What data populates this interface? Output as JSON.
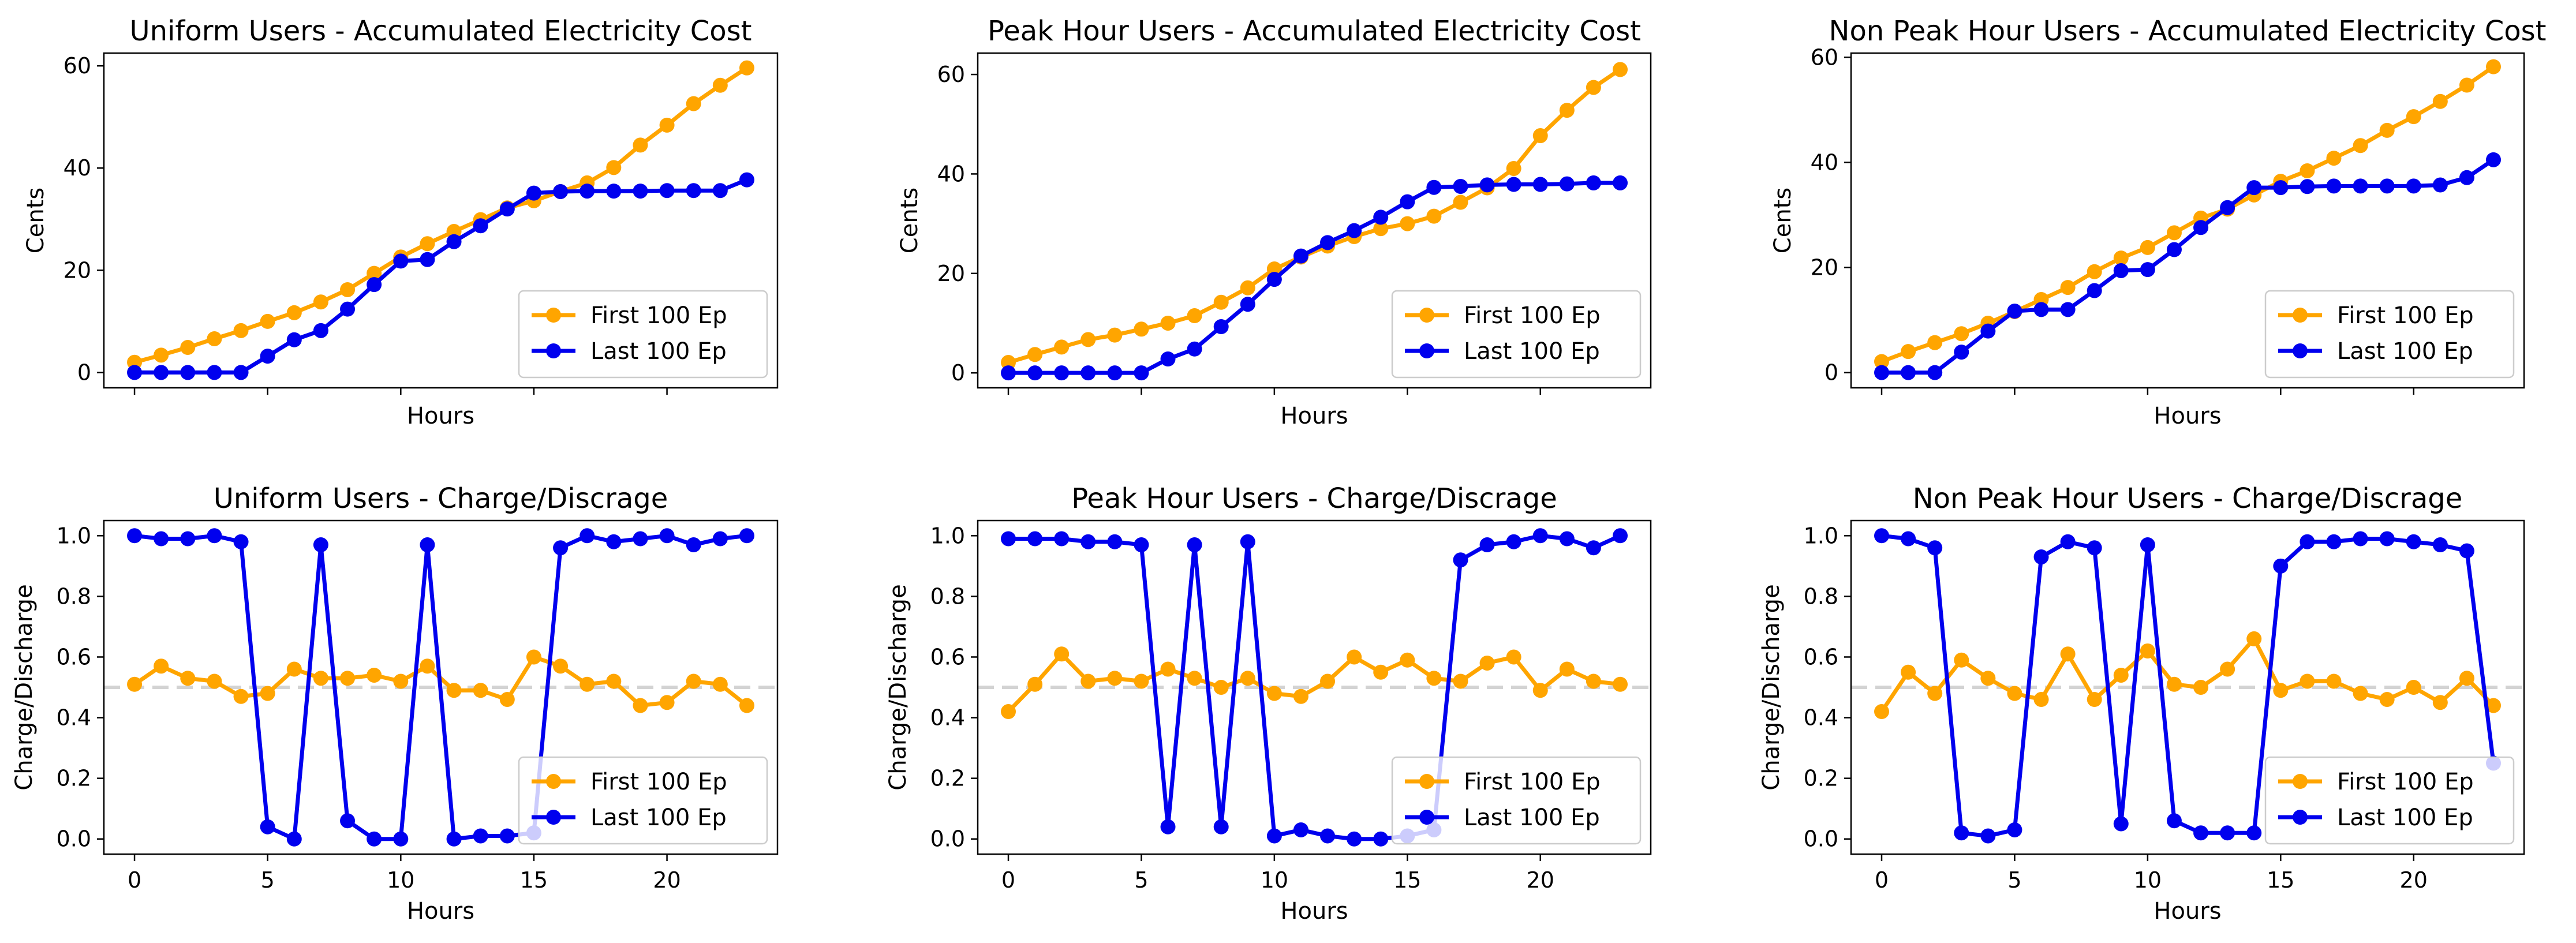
{
  "colors": {
    "first": "#ffa500",
    "last": "#0000ee",
    "reference": "#d3d3d3",
    "axes": "#000000",
    "background": "#ffffff"
  },
  "legend": {
    "first": "First 100 Ep",
    "last": "Last 100 Ep",
    "placement": "lower right"
  },
  "hours": [
    0,
    1,
    2,
    3,
    4,
    5,
    6,
    7,
    8,
    9,
    10,
    11,
    12,
    13,
    14,
    15,
    16,
    17,
    18,
    19,
    20,
    21,
    22,
    23
  ],
  "chart_data": [
    {
      "type": "line",
      "title": "Uniform Users - Accumulated Electricity Cost",
      "xlabel": "Hours",
      "ylabel": "Cents",
      "xlim": [
        -1.15,
        24.15
      ],
      "ylim": [
        -3,
        62.5
      ],
      "xticks": [
        0,
        5,
        10,
        15,
        20
      ],
      "show_xtick_labels": false,
      "yticks": [
        0,
        20,
        40,
        60
      ],
      "ytick_labels": [
        "0",
        "20",
        "40",
        "60"
      ],
      "series": [
        {
          "name": "First 100 Ep",
          "values": [
            2.0,
            3.4,
            4.9,
            6.6,
            8.2,
            10.0,
            11.7,
            13.8,
            16.2,
            19.4,
            22.6,
            25.2,
            27.6,
            29.9,
            32.2,
            33.6,
            35.4,
            37.1,
            40.1,
            44.5,
            48.4,
            52.6,
            56.2,
            59.6
          ]
        },
        {
          "name": "Last 100 Ep",
          "values": [
            0.0,
            0.0,
            0.0,
            0.0,
            0.0,
            3.2,
            6.4,
            8.2,
            12.4,
            17.2,
            21.8,
            22.1,
            25.6,
            28.7,
            32.0,
            35.1,
            35.4,
            35.5,
            35.5,
            35.5,
            35.6,
            35.6,
            35.6,
            37.7
          ]
        }
      ],
      "reference_line": null
    },
    {
      "type": "line",
      "title": "Peak Hour Users - Accumulated Electricity Cost",
      "xlabel": "Hours",
      "ylabel": "Cents",
      "xlim": [
        -1.15,
        24.15
      ],
      "ylim": [
        -3,
        64.3
      ],
      "xticks": [
        0,
        5,
        10,
        15,
        20
      ],
      "show_xtick_labels": false,
      "yticks": [
        0,
        20,
        40,
        60
      ],
      "ytick_labels": [
        "0",
        "20",
        "40",
        "60"
      ],
      "series": [
        {
          "name": "First 100 Ep",
          "values": [
            2.1,
            3.7,
            5.2,
            6.7,
            7.6,
            8.8,
            10.0,
            11.5,
            14.2,
            17.1,
            20.9,
            23.3,
            25.5,
            27.4,
            29.0,
            30.0,
            31.5,
            34.3,
            37.2,
            41.1,
            47.7,
            52.8,
            57.4,
            61.0
          ]
        },
        {
          "name": "Last 100 Ep",
          "values": [
            0.0,
            0.0,
            0.0,
            0.0,
            0.0,
            0.0,
            2.8,
            4.8,
            9.3,
            13.8,
            18.8,
            23.5,
            26.2,
            28.6,
            31.3,
            34.4,
            37.3,
            37.5,
            37.8,
            37.9,
            37.9,
            38.0,
            38.2,
            38.2
          ]
        }
      ],
      "reference_line": null
    },
    {
      "type": "line",
      "title": "Non Peak Hour Users - Accumulated Electricity Cost",
      "xlabel": "Hours",
      "ylabel": "Cents",
      "xlim": [
        -1.15,
        24.15
      ],
      "ylim": [
        -2.9,
        60.8
      ],
      "xticks": [
        0,
        5,
        10,
        15,
        20
      ],
      "show_xtick_labels": false,
      "yticks": [
        0,
        20,
        40,
        60
      ],
      "ytick_labels": [
        "0",
        "20",
        "40",
        "60"
      ],
      "series": [
        {
          "name": "First 100 Ep",
          "values": [
            2.1,
            4.0,
            5.7,
            7.4,
            9.4,
            11.6,
            13.9,
            16.2,
            19.2,
            21.8,
            23.8,
            26.6,
            29.4,
            31.1,
            33.8,
            36.4,
            38.4,
            40.8,
            43.2,
            46.1,
            48.7,
            51.6,
            54.7,
            58.2
          ]
        },
        {
          "name": "Last 100 Ep",
          "values": [
            0.0,
            0.0,
            0.0,
            3.9,
            7.9,
            11.7,
            12.0,
            12.0,
            15.6,
            19.4,
            19.6,
            23.4,
            27.6,
            31.4,
            35.2,
            35.2,
            35.4,
            35.5,
            35.5,
            35.5,
            35.5,
            35.7,
            37.1,
            40.5
          ]
        }
      ],
      "reference_line": null
    },
    {
      "type": "line",
      "title": "Uniform Users - Charge/Discrage",
      "xlabel": "Hours",
      "ylabel": "Charge/Discharge",
      "xlim": [
        -1.15,
        24.15
      ],
      "ylim": [
        -0.05,
        1.05
      ],
      "xticks": [
        0,
        5,
        10,
        15,
        20
      ],
      "show_xtick_labels": true,
      "xtick_labels": [
        "0",
        "5",
        "10",
        "15",
        "20"
      ],
      "yticks": [
        0.0,
        0.2,
        0.4,
        0.6,
        0.8,
        1.0
      ],
      "ytick_labels": [
        "0.0",
        "0.2",
        "0.4",
        "0.6",
        "0.8",
        "1.0"
      ],
      "series": [
        {
          "name": "First 100 Ep",
          "values": [
            0.51,
            0.57,
            0.53,
            0.52,
            0.47,
            0.48,
            0.56,
            0.53,
            0.53,
            0.54,
            0.52,
            0.57,
            0.49,
            0.49,
            0.46,
            0.6,
            0.57,
            0.51,
            0.52,
            0.44,
            0.45,
            0.52,
            0.51,
            0.44
          ]
        },
        {
          "name": "Last 100 Ep",
          "values": [
            1.0,
            0.99,
            0.99,
            1.0,
            0.98,
            0.04,
            0.0,
            0.97,
            0.06,
            0.0,
            0.0,
            0.97,
            0.0,
            0.01,
            0.01,
            0.02,
            0.96,
            1.0,
            0.98,
            0.99,
            1.0,
            0.97,
            0.99,
            1.0
          ]
        }
      ],
      "reference_line": 0.5
    },
    {
      "type": "line",
      "title": "Peak Hour Users - Charge/Discrage",
      "xlabel": "Hours",
      "ylabel": "Charge/Discharge",
      "xlim": [
        -1.15,
        24.15
      ],
      "ylim": [
        -0.05,
        1.05
      ],
      "xticks": [
        0,
        5,
        10,
        15,
        20
      ],
      "show_xtick_labels": true,
      "xtick_labels": [
        "0",
        "5",
        "10",
        "15",
        "20"
      ],
      "yticks": [
        0.0,
        0.2,
        0.4,
        0.6,
        0.8,
        1.0
      ],
      "ytick_labels": [
        "0.0",
        "0.2",
        "0.4",
        "0.6",
        "0.8",
        "1.0"
      ],
      "series": [
        {
          "name": "First 100 Ep",
          "values": [
            0.42,
            0.51,
            0.61,
            0.52,
            0.53,
            0.52,
            0.56,
            0.53,
            0.5,
            0.53,
            0.48,
            0.47,
            0.52,
            0.6,
            0.55,
            0.59,
            0.53,
            0.52,
            0.58,
            0.6,
            0.49,
            0.56,
            0.52,
            0.51
          ]
        },
        {
          "name": "Last 100 Ep",
          "values": [
            0.99,
            0.99,
            0.99,
            0.98,
            0.98,
            0.97,
            0.04,
            0.97,
            0.04,
            0.98,
            0.01,
            0.03,
            0.01,
            0.0,
            0.0,
            0.01,
            0.03,
            0.92,
            0.97,
            0.98,
            1.0,
            0.99,
            0.96,
            1.0
          ]
        }
      ],
      "reference_line": 0.5
    },
    {
      "type": "line",
      "title": "Non Peak Hour Users - Charge/Discrage",
      "xlabel": "Hours",
      "ylabel": "Charge/Discharge",
      "xlim": [
        -1.15,
        24.15
      ],
      "ylim": [
        -0.05,
        1.05
      ],
      "xticks": [
        0,
        5,
        10,
        15,
        20
      ],
      "show_xtick_labels": true,
      "xtick_labels": [
        "0",
        "5",
        "10",
        "15",
        "20"
      ],
      "yticks": [
        0.0,
        0.2,
        0.4,
        0.6,
        0.8,
        1.0
      ],
      "ytick_labels": [
        "0.0",
        "0.2",
        "0.4",
        "0.6",
        "0.8",
        "1.0"
      ],
      "series": [
        {
          "name": "First 100 Ep",
          "values": [
            0.42,
            0.55,
            0.48,
            0.59,
            0.53,
            0.48,
            0.46,
            0.61,
            0.46,
            0.54,
            0.62,
            0.51,
            0.5,
            0.56,
            0.66,
            0.49,
            0.52,
            0.52,
            0.48,
            0.46,
            0.5,
            0.45,
            0.53,
            0.44
          ]
        },
        {
          "name": "Last 100 Ep",
          "values": [
            1.0,
            0.99,
            0.96,
            0.02,
            0.01,
            0.03,
            0.93,
            0.98,
            0.96,
            0.05,
            0.97,
            0.06,
            0.02,
            0.02,
            0.02,
            0.9,
            0.98,
            0.98,
            0.99,
            0.99,
            0.98,
            0.97,
            0.95,
            0.25
          ]
        }
      ],
      "reference_line": 0.5
    }
  ]
}
